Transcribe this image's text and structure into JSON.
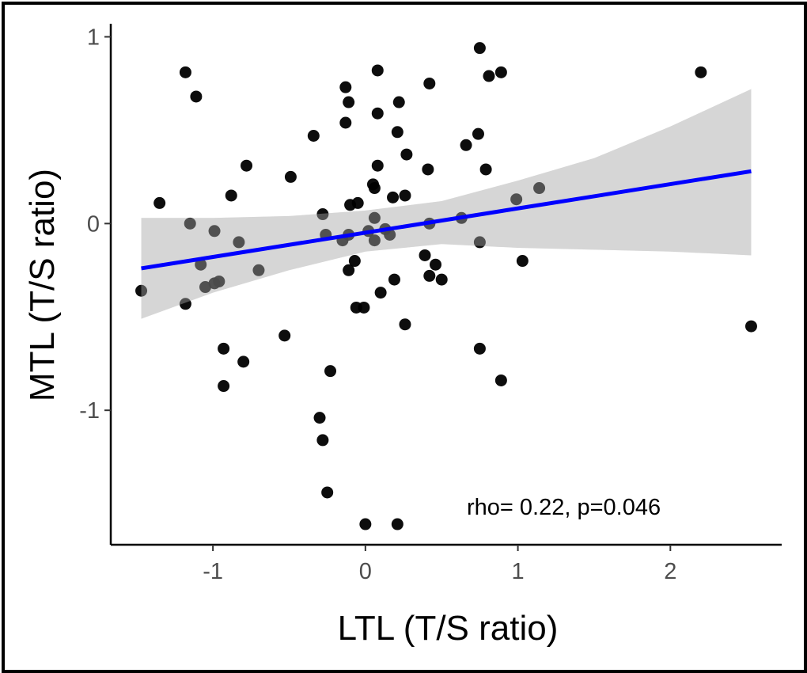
{
  "chart_data": {
    "type": "scatter",
    "xlabel": "LTL (T/S ratio)",
    "ylabel": "MTL (T/S ratio)",
    "xlim": [
      -1.67,
      2.73
    ],
    "ylim": [
      -1.72,
      1.07
    ],
    "xticks": [
      -1,
      0,
      1,
      2
    ],
    "xtick_labels": [
      "-1",
      "0",
      "1",
      "2"
    ],
    "yticks": [
      1,
      0,
      -1
    ],
    "ytick_labels": [
      "1",
      "0",
      "-1"
    ],
    "grid": false,
    "annotation": "rho= 0.22, p=0.046",
    "point_color": "#000000",
    "line_color": "#0000ff",
    "band_color": "#d3d3d3",
    "points": [
      [
        -1.47,
        -0.36
      ],
      [
        -1.35,
        0.11
      ],
      [
        -1.18,
        0.81
      ],
      [
        -1.15,
        0.0
      ],
      [
        -1.11,
        0.68
      ],
      [
        -1.08,
        -0.22
      ],
      [
        -1.18,
        -0.43
      ],
      [
        -1.05,
        -0.34
      ],
      [
        -0.99,
        -0.04
      ],
      [
        -0.99,
        -0.32
      ],
      [
        -0.96,
        -0.31
      ],
      [
        -0.93,
        -0.67
      ],
      [
        -0.93,
        -0.87
      ],
      [
        -0.88,
        0.15
      ],
      [
        -0.83,
        -0.1
      ],
      [
        -0.78,
        0.31
      ],
      [
        -0.8,
        -0.74
      ],
      [
        -0.7,
        -0.25
      ],
      [
        -0.53,
        -0.6
      ],
      [
        -0.49,
        0.25
      ],
      [
        -0.34,
        0.47
      ],
      [
        -0.28,
        0.05
      ],
      [
        -0.3,
        -1.04
      ],
      [
        -0.28,
        -1.16
      ],
      [
        -0.25,
        -1.44
      ],
      [
        -0.23,
        -0.79
      ],
      [
        -0.26,
        -0.06
      ],
      [
        -0.13,
        0.73
      ],
      [
        -0.11,
        0.65
      ],
      [
        -0.13,
        0.54
      ],
      [
        -0.1,
        0.1
      ],
      [
        -0.05,
        0.11
      ],
      [
        -0.11,
        -0.06
      ],
      [
        -0.15,
        -0.09
      ],
      [
        -0.07,
        -0.2
      ],
      [
        -0.11,
        -0.25
      ],
      [
        -0.06,
        -0.45
      ],
      [
        -0.01,
        -0.45
      ],
      [
        0.0,
        -1.61
      ],
      [
        0.02,
        -0.04
      ],
      [
        0.06,
        -0.09
      ],
      [
        0.06,
        0.03
      ],
      [
        0.05,
        0.21
      ],
      [
        0.06,
        0.19
      ],
      [
        0.08,
        0.82
      ],
      [
        0.08,
        0.59
      ],
      [
        0.08,
        0.31
      ],
      [
        0.1,
        -0.37
      ],
      [
        0.13,
        -0.03
      ],
      [
        0.16,
        -0.06
      ],
      [
        0.18,
        0.14
      ],
      [
        0.19,
        -0.3
      ],
      [
        0.21,
        0.49
      ],
      [
        0.22,
        0.65
      ],
      [
        0.21,
        -1.61
      ],
      [
        0.26,
        0.15
      ],
      [
        0.27,
        0.37
      ],
      [
        0.26,
        -0.54
      ],
      [
        0.39,
        -0.17
      ],
      [
        0.41,
        0.29
      ],
      [
        0.42,
        0.75
      ],
      [
        0.42,
        0.0
      ],
      [
        0.42,
        -0.28
      ],
      [
        0.46,
        -0.22
      ],
      [
        0.5,
        -0.3
      ],
      [
        0.63,
        0.03
      ],
      [
        0.66,
        0.42
      ],
      [
        0.74,
        0.48
      ],
      [
        0.75,
        0.94
      ],
      [
        0.79,
        0.29
      ],
      [
        0.75,
        -0.1
      ],
      [
        0.75,
        -0.67
      ],
      [
        0.81,
        0.79
      ],
      [
        0.89,
        0.81
      ],
      [
        0.89,
        -0.84
      ],
      [
        0.99,
        0.13
      ],
      [
        1.03,
        -0.2
      ],
      [
        1.14,
        0.19
      ],
      [
        2.2,
        0.81
      ],
      [
        2.53,
        -0.55
      ]
    ],
    "fit_line": {
      "x": [
        -1.47,
        2.53
      ],
      "y": [
        -0.24,
        0.28
      ]
    },
    "confidence_band": {
      "x": [
        -1.47,
        -1.0,
        -0.5,
        0.0,
        0.5,
        1.0,
        1.5,
        2.0,
        2.53
      ],
      "upper": [
        0.03,
        0.03,
        0.04,
        0.07,
        0.12,
        0.23,
        0.35,
        0.52,
        0.72
      ],
      "lower": [
        -0.51,
        -0.37,
        -0.25,
        -0.15,
        -0.11,
        -0.13,
        -0.14,
        -0.15,
        -0.17
      ]
    }
  }
}
